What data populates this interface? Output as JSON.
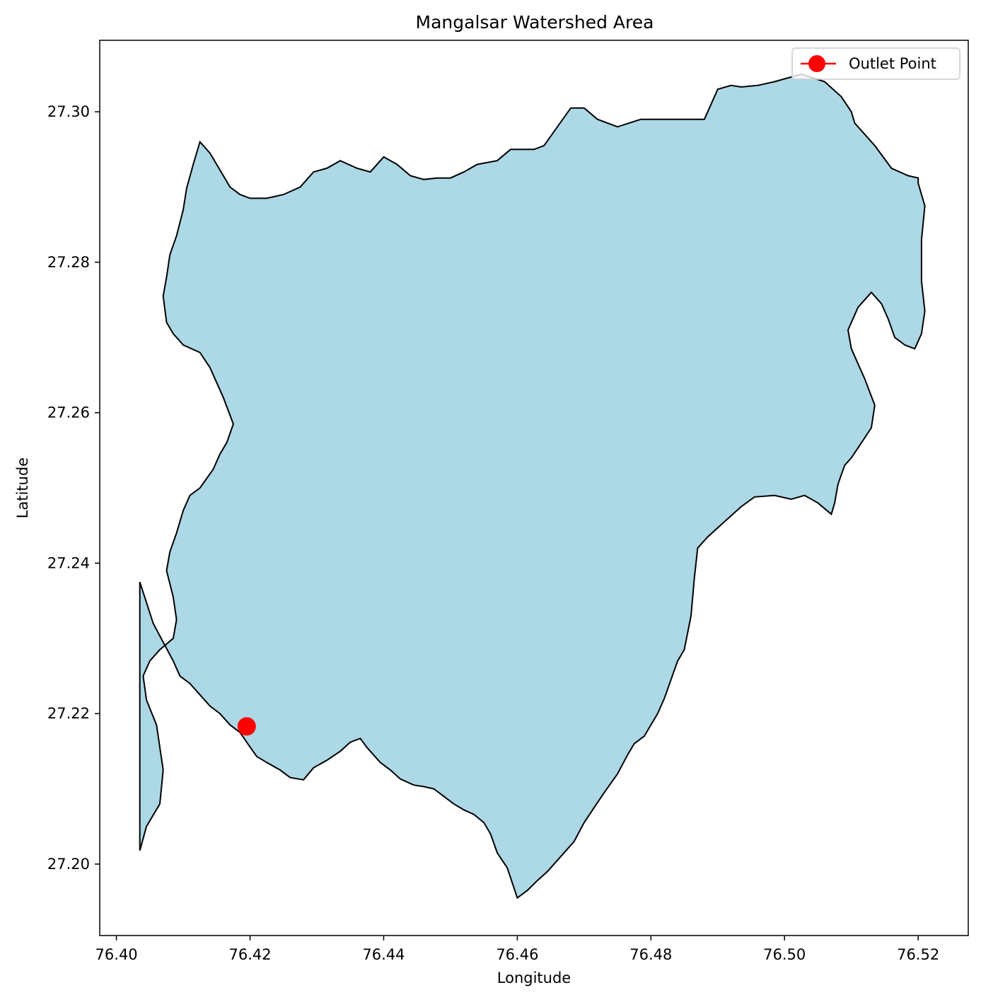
{
  "chart_data": {
    "type": "map",
    "title": "Mangalsar Watershed Area",
    "xlabel": "Longitude",
    "ylabel": "Latitude",
    "xlim": [
      76.3975,
      76.5275
    ],
    "ylim": [
      27.1905,
      27.3095
    ],
    "xticks": [
      76.4,
      76.42,
      76.44,
      76.46,
      76.48,
      76.5,
      76.52
    ],
    "xtick_labels": [
      "76.40",
      "76.42",
      "76.44",
      "76.46",
      "76.48",
      "76.50",
      "76.52"
    ],
    "yticks": [
      27.2,
      27.22,
      27.24,
      27.26,
      27.28,
      27.3
    ],
    "ytick_labels": [
      "27.20",
      "27.22",
      "27.24",
      "27.26",
      "27.28",
      "27.30"
    ],
    "grid": false,
    "legend": {
      "position": "upper-right",
      "entries": [
        "Outlet Point"
      ]
    },
    "colors": {
      "watershed_fill": "#add8e6",
      "boundary": "#000000",
      "outlet": "#ff0000"
    },
    "watershed_boundary": {
      "lon": [
        76.4035,
        76.4055,
        76.407,
        76.4085,
        76.4095,
        76.411,
        76.4125,
        76.414,
        76.4155,
        76.417,
        76.4185,
        76.4195,
        76.421,
        76.4225,
        76.4245,
        76.426,
        76.428,
        76.4295,
        76.4315,
        76.4335,
        76.435,
        76.4365,
        76.4375,
        76.4385,
        76.4395,
        76.441,
        76.4425,
        76.4445,
        76.446,
        76.4475,
        76.449,
        76.4505,
        76.452,
        76.4535,
        76.455,
        76.456,
        76.457,
        76.4585,
        76.46,
        76.4615,
        76.463,
        76.4645,
        76.4665,
        76.4685,
        76.47,
        76.4715,
        76.473,
        76.475,
        76.4765,
        76.4775,
        76.479,
        76.48,
        76.481,
        76.482,
        76.483,
        76.484,
        76.485,
        76.486,
        76.4865,
        76.487,
        76.4885,
        76.491,
        76.4935,
        76.4955,
        76.4985,
        76.501,
        76.503,
        76.505,
        76.507,
        76.5075,
        76.508,
        76.509,
        76.51,
        76.5115,
        76.513,
        76.5135,
        76.512,
        76.51,
        76.5095,
        76.511,
        76.513,
        76.5145,
        76.5155,
        76.5165,
        76.518,
        76.5195,
        76.5205,
        76.521,
        76.5205,
        76.5205,
        76.521,
        76.52,
        76.52,
        76.5185,
        76.516,
        76.5135,
        76.5105,
        76.51,
        76.5085,
        76.506,
        76.5025,
        76.4985,
        76.496,
        76.4935,
        76.492,
        76.49,
        76.488,
        76.486,
        76.482,
        76.4785,
        76.475,
        76.472,
        76.47,
        76.468,
        76.466,
        76.464,
        76.4625,
        76.461,
        76.459,
        76.457,
        76.454,
        76.452,
        76.45,
        76.448,
        76.446,
        76.444,
        76.442,
        76.44,
        76.438,
        76.436,
        76.4335,
        76.4315,
        76.4295,
        76.4275,
        76.425,
        76.4225,
        76.42,
        76.4185,
        76.417,
        76.416,
        76.415,
        76.414,
        76.4125,
        76.4115,
        76.4105,
        76.41,
        76.409,
        76.408,
        76.4075,
        76.407,
        76.4075,
        76.4085,
        76.41,
        76.4125,
        76.414,
        76.416,
        76.4175,
        76.4165,
        76.4155,
        76.4145,
        76.4125,
        76.411,
        76.41,
        76.409,
        76.408,
        76.4075,
        76.4085,
        76.409,
        76.4085,
        76.4065,
        76.405,
        76.404,
        76.4045,
        76.406,
        76.407,
        76.4065,
        76.4045,
        76.4035
      ],
      "lat": [
        27.2375,
        27.232,
        27.2295,
        27.227,
        27.225,
        27.224,
        27.2225,
        27.221,
        27.22,
        27.2185,
        27.2175,
        27.2162,
        27.2143,
        27.2135,
        27.2125,
        27.2115,
        27.2112,
        27.2128,
        27.2138,
        27.215,
        27.2162,
        27.2167,
        27.2155,
        27.2145,
        27.2135,
        27.2125,
        27.2113,
        27.2105,
        27.2103,
        27.21,
        27.209,
        27.208,
        27.2072,
        27.2066,
        27.2055,
        27.204,
        27.2015,
        27.1995,
        27.1955,
        27.1965,
        27.1978,
        27.199,
        27.201,
        27.203,
        27.2055,
        27.2075,
        27.2095,
        27.212,
        27.2145,
        27.216,
        27.217,
        27.2185,
        27.22,
        27.222,
        27.2245,
        27.227,
        27.2285,
        27.233,
        27.238,
        27.242,
        27.2435,
        27.2455,
        27.2475,
        27.2488,
        27.249,
        27.2485,
        27.249,
        27.248,
        27.2465,
        27.248,
        27.2505,
        27.253,
        27.254,
        27.256,
        27.258,
        27.261,
        27.2645,
        27.2685,
        27.271,
        27.274,
        27.276,
        27.2745,
        27.2725,
        27.27,
        27.269,
        27.2685,
        27.2705,
        27.2735,
        27.2775,
        27.283,
        27.2875,
        27.2905,
        27.2912,
        27.2915,
        27.2925,
        27.2955,
        27.2985,
        27.3,
        27.302,
        27.304,
        27.305,
        27.304,
        27.3035,
        27.3033,
        27.3035,
        27.303,
        27.299,
        27.299,
        27.299,
        27.299,
        27.298,
        27.299,
        27.3005,
        27.3005,
        27.298,
        27.2955,
        27.295,
        27.295,
        27.295,
        27.2935,
        27.293,
        27.292,
        27.2912,
        27.2912,
        27.291,
        27.2915,
        27.293,
        27.294,
        27.292,
        27.2925,
        27.2935,
        27.2925,
        27.292,
        27.29,
        27.289,
        27.2885,
        27.2885,
        27.289,
        27.29,
        27.2915,
        27.293,
        27.2945,
        27.296,
        27.293,
        27.2898,
        27.287,
        27.2835,
        27.281,
        27.278,
        27.2755,
        27.272,
        27.2705,
        27.269,
        27.268,
        27.266,
        27.262,
        27.2585,
        27.256,
        27.2545,
        27.2525,
        27.25,
        27.249,
        27.247,
        27.244,
        27.2415,
        27.239,
        27.2355,
        27.2325,
        27.23,
        27.2285,
        27.227,
        27.225,
        27.2218,
        27.2185,
        27.2125,
        27.208,
        27.205,
        27.2018
      ]
    },
    "outlet": {
      "lon": 76.4195,
      "lat": 27.2183
    }
  }
}
